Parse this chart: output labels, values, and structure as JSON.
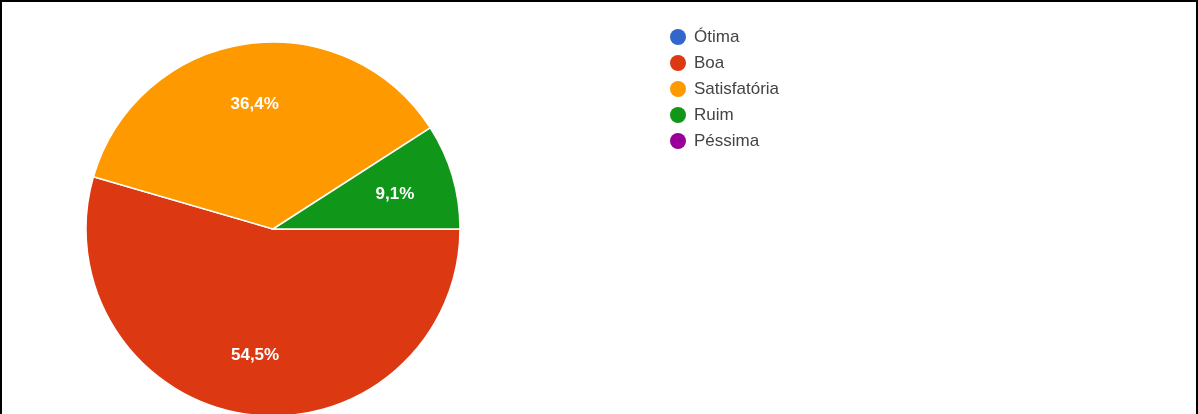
{
  "chart_data": {
    "type": "pie",
    "categories": [
      "Ótima",
      "Boa",
      "Satisfatória",
      "Ruim",
      "Péssima"
    ],
    "values": [
      0,
      54.5,
      36.4,
      9.1,
      0
    ],
    "colors": [
      "#3366cc",
      "#dc3912",
      "#ff9900",
      "#109618",
      "#990099"
    ],
    "value_labels": [
      null,
      "54,5%",
      "36,4%",
      "9,1%",
      null
    ],
    "legend": "top right"
  }
}
